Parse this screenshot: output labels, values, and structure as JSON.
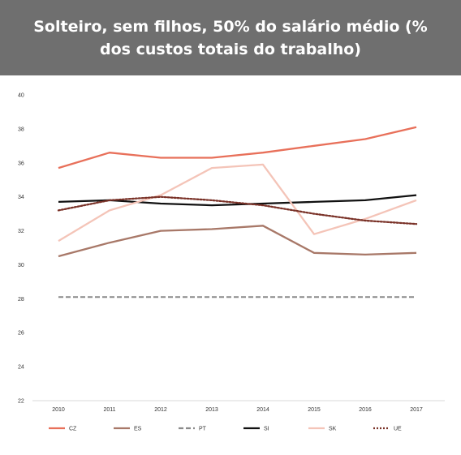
{
  "title": "Solteiro, sem filhos, 50% do salário médio (% dos custos totais do trabalho)",
  "chart_data": {
    "type": "line",
    "title": "Solteiro, sem filhos, 50% do salário médio (% dos custos totais do trabalho)",
    "xlabel": "",
    "ylabel": "",
    "x": [
      "2010",
      "2011",
      "2012",
      "2013",
      "2014",
      "2015",
      "2016",
      "2017"
    ],
    "ylim": [
      22,
      40
    ],
    "yticks": [
      "22",
      "24",
      "26",
      "28",
      "30",
      "32",
      "34",
      "36",
      "38",
      "40"
    ],
    "grid": false,
    "legend_position": "bottom",
    "series": [
      {
        "name": "CZ",
        "color": "#e8705a",
        "style": "solid",
        "values": [
          35.7,
          36.6,
          36.3,
          36.3,
          36.6,
          37.0,
          37.4,
          38.1
        ]
      },
      {
        "name": "ES",
        "color": "#a87868",
        "style": "solid",
        "values": [
          30.5,
          31.3,
          32.0,
          32.1,
          32.3,
          30.7,
          30.6,
          30.7
        ]
      },
      {
        "name": "PT",
        "color": "#8a8a8a",
        "style": "dashed",
        "values": [
          28.1,
          28.1,
          28.1,
          28.1,
          28.1,
          28.1,
          28.1,
          28.1
        ]
      },
      {
        "name": "SI",
        "color": "#111111",
        "style": "solid",
        "values": [
          33.7,
          33.8,
          33.6,
          33.5,
          33.6,
          33.7,
          33.8,
          34.1
        ]
      },
      {
        "name": "SK",
        "color": "#f4c4b8",
        "style": "solid",
        "values": [
          31.4,
          33.2,
          34.1,
          35.7,
          35.9,
          31.8,
          32.7,
          33.8
        ]
      },
      {
        "name": "UE",
        "color": "#7a3228",
        "style": "dotted",
        "values": [
          33.2,
          33.8,
          34.0,
          33.8,
          33.5,
          33.0,
          32.6,
          32.4
        ]
      }
    ]
  }
}
